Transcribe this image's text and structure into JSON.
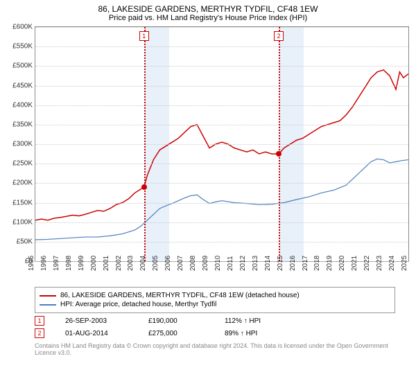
{
  "title": "86, LAKESIDE GARDENS, MERTHYR TYDFIL, CF48 1EW",
  "subtitle": "Price paid vs. HM Land Registry's House Price Index (HPI)",
  "chart": {
    "type": "line",
    "background_color": "#ffffff",
    "grid_color": "#cccccc",
    "border_color": "#888888",
    "label_fontsize": 10,
    "y_axis": {
      "min": 0,
      "max": 600000,
      "step": 50000,
      "prefix": "£",
      "suffix": "K",
      "divisor": 1000
    },
    "x_axis": {
      "min": 1995,
      "max": 2025,
      "step": 1
    },
    "shaded_regions": [
      {
        "from": 2003.74,
        "to": 2005.74,
        "color": "#e8f0fa"
      },
      {
        "from": 2014.58,
        "to": 2016.58,
        "color": "#e8f0fa"
      }
    ],
    "markers": [
      {
        "id": "1",
        "x": 2003.74,
        "y": 190000
      },
      {
        "id": "2",
        "x": 2014.58,
        "y": 275000
      }
    ],
    "series": [
      {
        "name": "86, LAKESIDE GARDENS, MERTHYR TYDFIL, CF48 1EW (detached house)",
        "color": "#cc0000",
        "line_width": 1.5,
        "data": [
          [
            1995,
            105000
          ],
          [
            1995.5,
            108000
          ],
          [
            1996,
            105000
          ],
          [
            1996.5,
            110000
          ],
          [
            1997,
            112000
          ],
          [
            1997.5,
            115000
          ],
          [
            1998,
            118000
          ],
          [
            1998.5,
            116000
          ],
          [
            1999,
            120000
          ],
          [
            1999.5,
            125000
          ],
          [
            2000,
            130000
          ],
          [
            2000.5,
            128000
          ],
          [
            2001,
            135000
          ],
          [
            2001.5,
            145000
          ],
          [
            2002,
            150000
          ],
          [
            2002.5,
            160000
          ],
          [
            2003,
            175000
          ],
          [
            2003.5,
            185000
          ],
          [
            2003.74,
            190000
          ],
          [
            2004,
            220000
          ],
          [
            2004.5,
            260000
          ],
          [
            2005,
            285000
          ],
          [
            2005.5,
            295000
          ],
          [
            2006,
            305000
          ],
          [
            2006.5,
            315000
          ],
          [
            2007,
            330000
          ],
          [
            2007.5,
            345000
          ],
          [
            2008,
            350000
          ],
          [
            2008.5,
            320000
          ],
          [
            2009,
            290000
          ],
          [
            2009.5,
            300000
          ],
          [
            2010,
            305000
          ],
          [
            2010.5,
            300000
          ],
          [
            2011,
            290000
          ],
          [
            2011.5,
            285000
          ],
          [
            2012,
            280000
          ],
          [
            2012.5,
            285000
          ],
          [
            2013,
            275000
          ],
          [
            2013.5,
            280000
          ],
          [
            2014,
            275000
          ],
          [
            2014.58,
            275000
          ],
          [
            2015,
            290000
          ],
          [
            2015.5,
            300000
          ],
          [
            2016,
            310000
          ],
          [
            2016.5,
            315000
          ],
          [
            2017,
            325000
          ],
          [
            2017.5,
            335000
          ],
          [
            2018,
            345000
          ],
          [
            2018.5,
            350000
          ],
          [
            2019,
            355000
          ],
          [
            2019.5,
            360000
          ],
          [
            2020,
            375000
          ],
          [
            2020.5,
            395000
          ],
          [
            2021,
            420000
          ],
          [
            2021.5,
            445000
          ],
          [
            2022,
            470000
          ],
          [
            2022.5,
            485000
          ],
          [
            2023,
            490000
          ],
          [
            2023.5,
            475000
          ],
          [
            2024,
            440000
          ],
          [
            2024.3,
            485000
          ],
          [
            2024.6,
            470000
          ],
          [
            2025,
            480000
          ]
        ]
      },
      {
        "name": "HPI: Average price, detached house, Merthyr Tydfil",
        "color": "#4a7ebb",
        "line_width": 1.2,
        "data": [
          [
            1995,
            55000
          ],
          [
            1996,
            56000
          ],
          [
            1997,
            58000
          ],
          [
            1998,
            60000
          ],
          [
            1999,
            62000
          ],
          [
            2000,
            62000
          ],
          [
            2001,
            65000
          ],
          [
            2002,
            70000
          ],
          [
            2003,
            80000
          ],
          [
            2003.5,
            90000
          ],
          [
            2004,
            105000
          ],
          [
            2004.5,
            120000
          ],
          [
            2005,
            135000
          ],
          [
            2005.5,
            142000
          ],
          [
            2006,
            148000
          ],
          [
            2006.5,
            155000
          ],
          [
            2007,
            162000
          ],
          [
            2007.5,
            168000
          ],
          [
            2008,
            170000
          ],
          [
            2008.5,
            158000
          ],
          [
            2009,
            148000
          ],
          [
            2009.5,
            152000
          ],
          [
            2010,
            155000
          ],
          [
            2011,
            150000
          ],
          [
            2012,
            148000
          ],
          [
            2013,
            145000
          ],
          [
            2014,
            146000
          ],
          [
            2015,
            150000
          ],
          [
            2016,
            158000
          ],
          [
            2017,
            165000
          ],
          [
            2018,
            175000
          ],
          [
            2019,
            182000
          ],
          [
            2020,
            195000
          ],
          [
            2020.5,
            210000
          ],
          [
            2021,
            225000
          ],
          [
            2021.5,
            240000
          ],
          [
            2022,
            255000
          ],
          [
            2022.5,
            262000
          ],
          [
            2023,
            260000
          ],
          [
            2023.5,
            252000
          ],
          [
            2024,
            255000
          ],
          [
            2024.5,
            258000
          ],
          [
            2025,
            260000
          ]
        ]
      }
    ]
  },
  "legend": {
    "items": [
      {
        "color": "#cc0000",
        "label": "86, LAKESIDE GARDENS, MERTHYR TYDFIL, CF48 1EW (detached house)"
      },
      {
        "color": "#4a7ebb",
        "label": "HPI: Average price, detached house, Merthyr Tydfil"
      }
    ]
  },
  "sales": [
    {
      "id": "1",
      "date": "26-SEP-2003",
      "price": "£190,000",
      "vs_hpi": "112% ↑ HPI"
    },
    {
      "id": "2",
      "date": "01-AUG-2014",
      "price": "£275,000",
      "vs_hpi": "89% ↑ HPI"
    }
  ],
  "footer": "Contains HM Land Registry data © Crown copyright and database right 2024. This data is licensed under the Open Government Licence v3.0."
}
